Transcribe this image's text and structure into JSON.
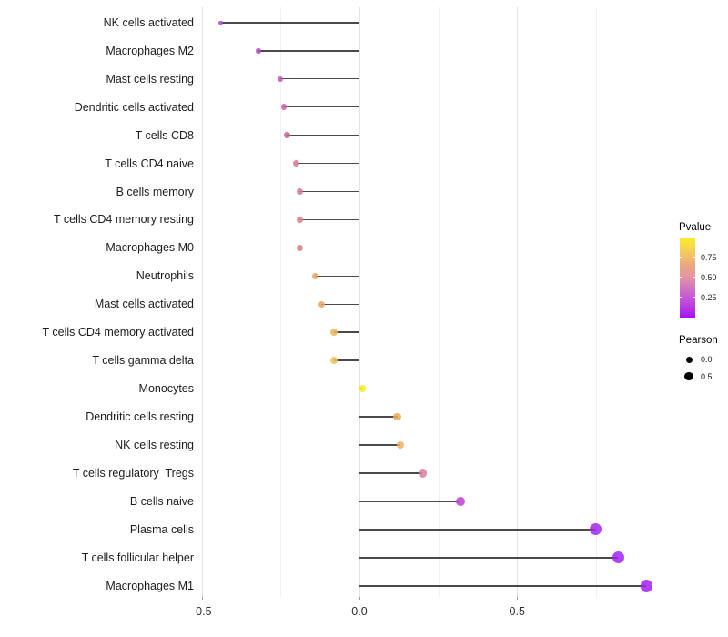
{
  "chart_data": {
    "type": "lollipop",
    "orientation": "horizontal",
    "title": "",
    "xlabel": "",
    "ylabel": "",
    "x_axis": {
      "tick_labels": [
        "-0.5",
        "0.0",
        "0.5"
      ],
      "tick_values": [
        -0.5,
        0.0,
        0.5
      ],
      "minor_tick_values": [
        -0.25,
        0.25,
        0.75
      ],
      "range": [
        -0.52,
        0.97
      ],
      "grid": "vertical-only"
    },
    "stem_color": "#4a4a4a",
    "rows": [
      {
        "category": "NK cells activated",
        "pearson": -0.44,
        "dot_color": "#a44fd0",
        "dot_size": 4.5
      },
      {
        "category": "Macrophages M2",
        "pearson": -0.32,
        "dot_color": "#b44bcb",
        "dot_size": 5.5
      },
      {
        "category": "Mast cells resting",
        "pearson": -0.25,
        "dot_color": "#c156ae",
        "dot_size": 6
      },
      {
        "category": "Dendritic cells activated",
        "pearson": -0.24,
        "dot_color": "#c55fa9",
        "dot_size": 6.5
      },
      {
        "category": "T cells CD8",
        "pearson": -0.23,
        "dot_color": "#c96295",
        "dot_size": 6.5
      },
      {
        "category": "T cells CD4 naive",
        "pearson": -0.2,
        "dot_color": "#d37691",
        "dot_size": 7
      },
      {
        "category": "B cells memory",
        "pearson": -0.19,
        "dot_color": "#d5788c",
        "dot_size": 7
      },
      {
        "category": "T cells CD4 memory resting",
        "pearson": -0.19,
        "dot_color": "#d97e89",
        "dot_size": 7
      },
      {
        "category": "Macrophages M0",
        "pearson": -0.19,
        "dot_color": "#d97e89",
        "dot_size": 7
      },
      {
        "category": "Neutrophils",
        "pearson": -0.14,
        "dot_color": "#e9a161",
        "dot_size": 7.5
      },
      {
        "category": "Mast cells activated",
        "pearson": -0.12,
        "dot_color": "#eaa464",
        "dot_size": 7.5
      },
      {
        "category": "T cells CD4 memory activated",
        "pearson": -0.08,
        "dot_color": "#ecb65e",
        "dot_size": 8
      },
      {
        "category": "T cells gamma delta",
        "pearson": -0.08,
        "dot_color": "#edbf58",
        "dot_size": 8
      },
      {
        "category": "Monocytes",
        "pearson": 0.01,
        "dot_color": "#f7ec16",
        "dot_size": 7.5
      },
      {
        "category": "Dendritic cells resting",
        "pearson": 0.12,
        "dot_color": "#ecab58",
        "dot_size": 8.5
      },
      {
        "category": "NK cells resting",
        "pearson": 0.13,
        "dot_color": "#efb061",
        "dot_size": 8.5
      },
      {
        "category": "T cells regulatory  Tregs",
        "pearson": 0.2,
        "dot_color": "#d9809b",
        "dot_size": 9.5
      },
      {
        "category": "B cells naive",
        "pearson": 0.32,
        "dot_color": "#c140d6",
        "dot_size": 10
      },
      {
        "category": "Plasma cells",
        "pearson": 0.75,
        "dot_color": "#a228ee",
        "dot_size": 13
      },
      {
        "category": "T cells follicular helper",
        "pearson": 0.82,
        "dot_color": "#a522f0",
        "dot_size": 13
      },
      {
        "category": "Macrophages M1",
        "pearson": 0.91,
        "dot_color": "#a520f0",
        "dot_size": 13.5
      }
    ],
    "legends": {
      "pvalue": {
        "title": "Pvalue",
        "tick_labels": [
          "0.75",
          "0.50",
          "0.25"
        ],
        "tick_values": [
          0.75,
          0.5,
          0.25
        ],
        "range": [
          0,
          1
        ],
        "gradient_low_color": "#a511f3",
        "gradient_mid_color": "#e5959e",
        "gradient_high_color": "#fcec2b",
        "position": "right"
      },
      "pearson": {
        "title": "Pearson",
        "items": [
          {
            "label": "0.0",
            "size": 7
          },
          {
            "label": "0.5",
            "size": 9.5
          }
        ],
        "dot_color": "#000000",
        "position": "right"
      }
    }
  }
}
